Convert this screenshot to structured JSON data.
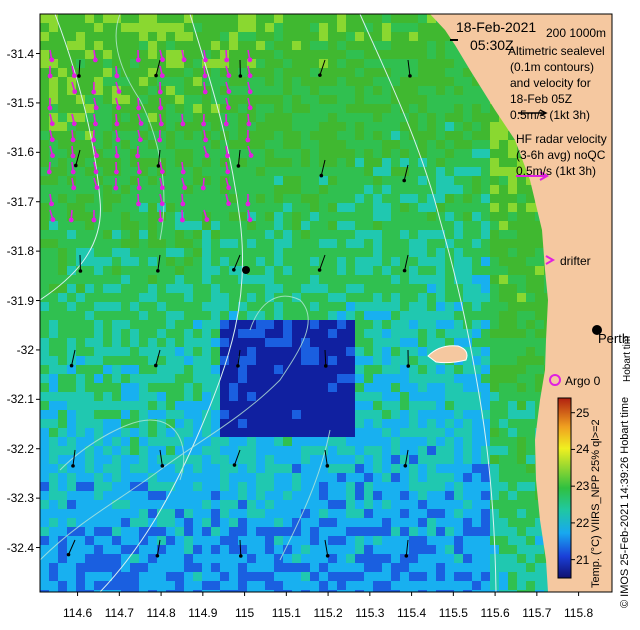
{
  "title": {
    "date": "18-Feb-2021",
    "time": "05:30Z"
  },
  "legend": {
    "depth_contours": "200  1000m",
    "altimetric_lines": [
      "Altimetric sealevel",
      "(0.1m contours)",
      "and velocity for",
      "18-Feb 05Z"
    ],
    "altimetric_scale": "0.5m/s (1kt 3h)",
    "hf_lines": [
      "HF radar velocity",
      "(3-6h avg) noQC"
    ],
    "hf_scale": "0.5m/s (1kt 3h)",
    "drifter": "drifter",
    "argo": "Argo 0",
    "city": "Perth",
    "hobart_stamp": "Hobart tim",
    "colorbar_title": "Temp. (°C) VIIRS_NPP 25% ql>=2",
    "credit": "© IMOS 25-Feb-2021 14:39:26 Hobart time"
  },
  "colors": {
    "land": "#f5c8a0",
    "hf_arrow": "#e020e0",
    "argo": "#e020e0",
    "contour": "#d8f0f0"
  },
  "chart_data": {
    "type": "heatmap",
    "x_ticks": [
      "114.6",
      "114.7",
      "114.8",
      "114.9",
      "115",
      "115.1",
      "115.2",
      "115.3",
      "115.4",
      "115.5",
      "115.6",
      "115.7",
      "115.8"
    ],
    "y_ticks": [
      "-31.4",
      "-31.5",
      "-31.6",
      "-31.7",
      "-31.8",
      "-31.9",
      "-32",
      "-32.1",
      "-32.2",
      "-32.3",
      "-32.4"
    ],
    "xlim": [
      114.51,
      115.88
    ],
    "ylim": [
      -32.49,
      -31.32
    ],
    "colorbar_ticks": [
      "21",
      "22",
      "23",
      "24",
      "25"
    ],
    "colorbar_range": [
      20.5,
      25.4
    ]
  }
}
